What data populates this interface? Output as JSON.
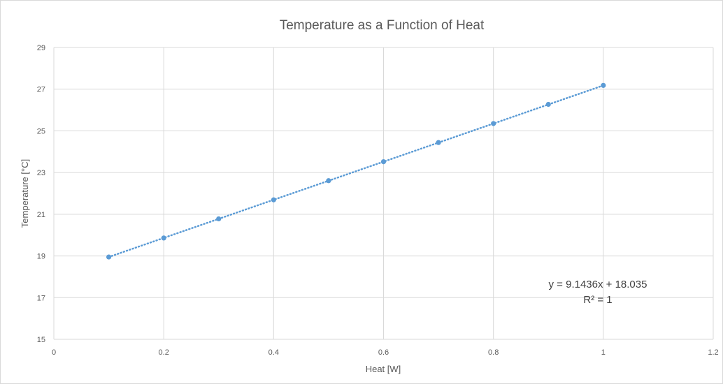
{
  "chart_data": {
    "type": "scatter",
    "title": "Temperature as a Function of Heat",
    "xlabel": "Heat [W]",
    "ylabel": "Temperature [°C]",
    "xlim": [
      0,
      1.2
    ],
    "ylim": [
      15,
      29
    ],
    "x_ticks": [
      0,
      0.2,
      0.4,
      0.6,
      0.8,
      1,
      1.2
    ],
    "y_ticks": [
      15,
      17,
      19,
      21,
      23,
      25,
      27,
      29
    ],
    "x_tick_labels": [
      "0",
      "0.2",
      "0.4",
      "0.6",
      "0.8",
      "1",
      "1.2"
    ],
    "y_tick_labels": [
      "15",
      "17",
      "19",
      "21",
      "23",
      "25",
      "27",
      "29"
    ],
    "grid": true,
    "legend": "none",
    "series": [
      {
        "x": [
          0.1,
          0.2,
          0.3,
          0.4,
          0.5,
          0.6,
          0.7,
          0.8,
          0.9,
          1.0
        ],
        "y": [
          18.95,
          19.86,
          20.78,
          21.69,
          22.61,
          23.52,
          24.44,
          25.35,
          26.27,
          27.18
        ],
        "color": "#5b9bd5"
      }
    ],
    "trendline": {
      "type": "linear",
      "style": "dotted",
      "slope": 9.1436,
      "intercept": 18.035,
      "x_range": [
        0.1,
        1.0
      ],
      "color": "#5b9bd5",
      "equation": "y = 9.1436x + 18.035",
      "r_squared": "R² = 1"
    }
  }
}
